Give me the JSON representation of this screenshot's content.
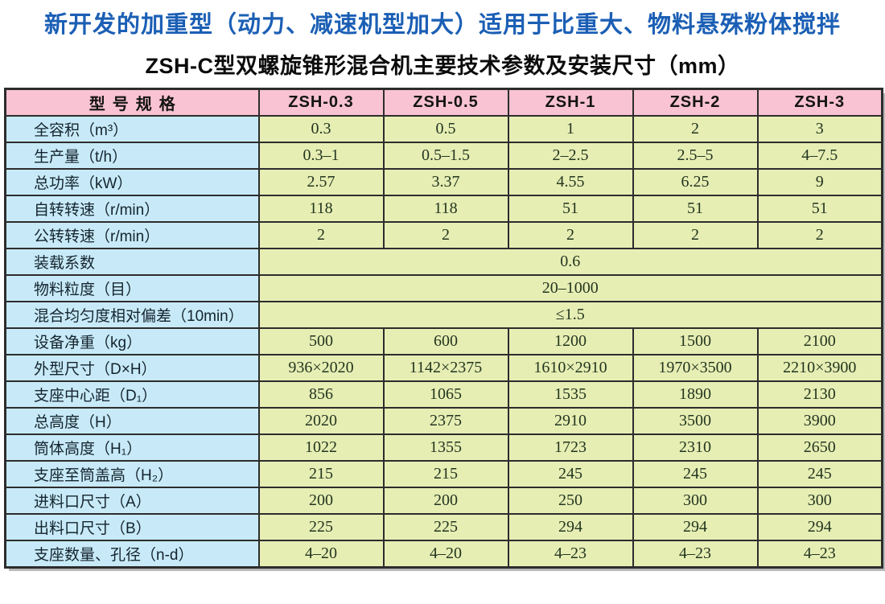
{
  "page": {
    "title": "新开发的加重型（动力、减速机型加大）适用于比重大、物料悬殊粉体搅拌",
    "subtitle": "ZSH-C型双螺旋锥形混合机主要技术参数及安装尺寸（mm）"
  },
  "colors": {
    "title_blue": "#1b5fb5",
    "header_pink": "#f9c3d3",
    "label_blue": "#c8eaf8",
    "cell_green": "#e6eeb4",
    "border": "#2d2d2d"
  },
  "table": {
    "header": [
      "型号规格",
      "ZSH-0.3",
      "ZSH-0.5",
      "ZSH-1",
      "ZSH-2",
      "ZSH-3"
    ],
    "rows": [
      {
        "label": "全容积（m³）",
        "values": [
          "0.3",
          "0.5",
          "1",
          "2",
          "3"
        ]
      },
      {
        "label": "生产量（t/h）",
        "values": [
          "0.3–1",
          "0.5–1.5",
          "2–2.5",
          "2.5–5",
          "4–7.5"
        ]
      },
      {
        "label": "总功率（kW）",
        "values": [
          "2.57",
          "3.37",
          "4.55",
          "6.25",
          "9"
        ]
      },
      {
        "label": "自转转速（r/min）",
        "values": [
          "118",
          "118",
          "51",
          "51",
          "51"
        ]
      },
      {
        "label": "公转转速（r/min）",
        "values": [
          "2",
          "2",
          "2",
          "2",
          "2"
        ]
      },
      {
        "label": "装载系数",
        "merged": "0.6"
      },
      {
        "label": "物料粒度（目）",
        "merged": "20–1000"
      },
      {
        "label": "混合均匀度相对偏差（10min）",
        "merged": "≤1.5"
      },
      {
        "label": "设备净重（kg）",
        "values": [
          "500",
          "600",
          "1200",
          "1500",
          "2100"
        ]
      },
      {
        "label": "外型尺寸（D×H）",
        "values": [
          "936×2020",
          "1142×2375",
          "1610×2910",
          "1970×3500",
          "2210×3900"
        ]
      },
      {
        "label": "支座中心距（D₁）",
        "values": [
          "856",
          "1065",
          "1535",
          "1890",
          "2130"
        ]
      },
      {
        "label": "总高度（H）",
        "values": [
          "2020",
          "2375",
          "2910",
          "3500",
          "3900"
        ]
      },
      {
        "label": "筒体高度（H₁）",
        "values": [
          "1022",
          "1355",
          "1723",
          "2310",
          "2650"
        ]
      },
      {
        "label": "支座至筒盖高（H₂）",
        "values": [
          "215",
          "215",
          "245",
          "245",
          "245"
        ]
      },
      {
        "label": "进料口尺寸（A）",
        "values": [
          "200",
          "200",
          "250",
          "300",
          "300"
        ]
      },
      {
        "label": "出料口尺寸（B）",
        "values": [
          "225",
          "225",
          "294",
          "294",
          "294"
        ]
      },
      {
        "label": "支座数量、孔径（n-d）",
        "values": [
          "4–20",
          "4–20",
          "4–23",
          "4–23",
          "4–23"
        ]
      }
    ]
  }
}
